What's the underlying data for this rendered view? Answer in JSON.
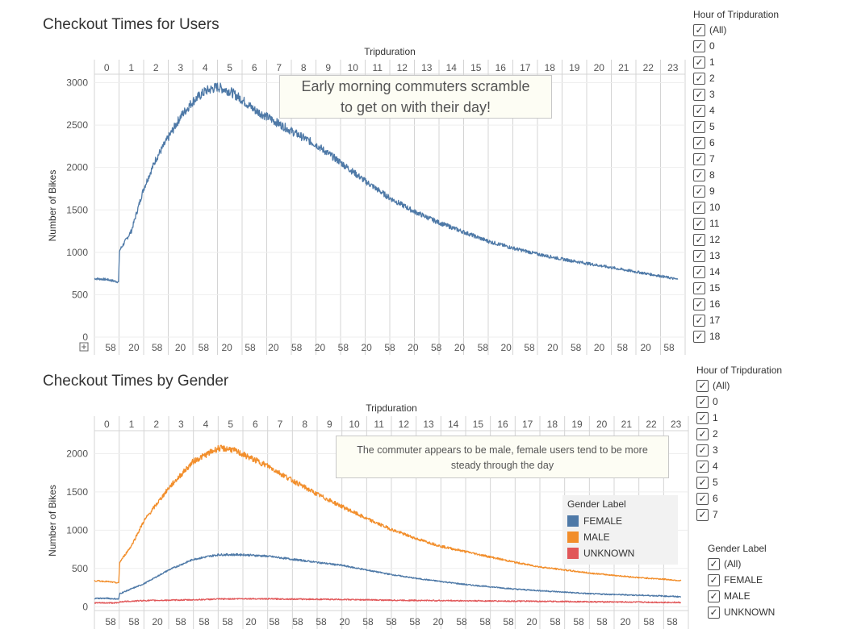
{
  "charts": {
    "top": {
      "title": "Checkout Times for Users"
    },
    "bottom": {
      "title": "Checkout Times by Gender"
    }
  },
  "filters": {
    "hour_top": {
      "title": "Hour of Tripduration",
      "items": [
        "(All)",
        "0",
        "1",
        "2",
        "3",
        "4",
        "5",
        "6",
        "7",
        "8",
        "9",
        "10",
        "11",
        "12",
        "13",
        "14",
        "15",
        "16",
        "17",
        "18"
      ]
    },
    "hour_bottom": {
      "title": "Hour of Tripduration",
      "items": [
        "(All)",
        "0",
        "1",
        "2",
        "3",
        "4",
        "5",
        "6",
        "7"
      ]
    },
    "gender": {
      "title": "Gender Label",
      "items": [
        "(All)",
        "FEMALE",
        "MALE",
        "UNKNOWN"
      ]
    }
  },
  "annotations": {
    "top": [
      "Early morning commuters scramble",
      "to get on with their day!"
    ],
    "bottom": [
      "The commuter appears to be male, female users tend to be more",
      "steady through the day"
    ]
  },
  "legend": {
    "title": "Gender Label",
    "items": [
      {
        "label": "FEMALE",
        "color": "#4e79a7"
      },
      {
        "label": "MALE",
        "color": "#f28e2b"
      },
      {
        "label": "UNKNOWN",
        "color": "#e15759"
      }
    ]
  },
  "chart_data": [
    {
      "type": "line",
      "title": "Checkout Times for Users",
      "x_axis_title": "Tripduration",
      "ylabel": "Number of Bikes",
      "categories": [
        "0",
        "1",
        "2",
        "3",
        "4",
        "5",
        "6",
        "7",
        "8",
        "9",
        "10",
        "11",
        "12",
        "13",
        "14",
        "15",
        "16",
        "17",
        "18",
        "19",
        "20",
        "21",
        "22",
        "23"
      ],
      "bottom_tick_labels": [
        "58",
        "20",
        "58",
        "20",
        "58",
        "20",
        "58",
        "20",
        "58",
        "20",
        "58",
        "20",
        "58",
        "20",
        "58",
        "20",
        "58",
        "20",
        "58",
        "20",
        "58",
        "20",
        "58",
        "20",
        "58"
      ],
      "ylim": [
        0,
        3100
      ],
      "yticks": [
        0,
        500,
        1000,
        1500,
        2000,
        2500,
        3000
      ],
      "grid": true,
      "series": [
        {
          "color": "#4e79a7",
          "x": [
            0,
            0.5,
            0.98,
            1.02,
            1.5,
            2,
            2.5,
            3,
            3.5,
            4,
            4.5,
            5,
            5.5,
            6,
            6.5,
            7,
            8,
            9,
            10,
            11,
            12,
            13,
            14,
            15,
            16,
            17,
            18,
            19,
            20,
            21,
            22,
            23,
            23.7
          ],
          "values": [
            690,
            680,
            650,
            1020,
            1250,
            1750,
            2100,
            2350,
            2600,
            2780,
            2900,
            2950,
            2900,
            2800,
            2680,
            2600,
            2430,
            2270,
            2060,
            1840,
            1640,
            1480,
            1350,
            1240,
            1130,
            1050,
            980,
            920,
            870,
            820,
            770,
            720,
            680
          ]
        }
      ]
    },
    {
      "type": "line",
      "title": "Checkout Times by Gender",
      "x_axis_title": "Tripduration",
      "ylabel": "Number of Bikes",
      "categories": [
        "0",
        "1",
        "2",
        "3",
        "4",
        "5",
        "6",
        "7",
        "8",
        "9",
        "10",
        "11",
        "12",
        "13",
        "14",
        "15",
        "16",
        "17",
        "18",
        "19",
        "20",
        "21",
        "22",
        "23"
      ],
      "bottom_tick_labels": [
        "58",
        "58",
        "20",
        "58",
        "58",
        "58",
        "20",
        "58",
        "58",
        "58",
        "20",
        "58",
        "58",
        "58",
        "20",
        "58",
        "58",
        "58",
        "20",
        "58",
        "58",
        "58",
        "20",
        "58",
        "58"
      ],
      "ylim": [
        -50,
        2300
      ],
      "yticks": [
        0,
        500,
        1000,
        1500,
        2000
      ],
      "grid": true,
      "legend": "right",
      "series": [
        {
          "name": "FEMALE",
          "color": "#4e79a7",
          "x": [
            0,
            0.5,
            0.98,
            1.02,
            2,
            3,
            4,
            5,
            6,
            7,
            8,
            9,
            10,
            11,
            12,
            13,
            14,
            15,
            16,
            17,
            18,
            19,
            20,
            21,
            22,
            23,
            23.7
          ],
          "values": [
            110,
            110,
            100,
            170,
            300,
            480,
            620,
            680,
            680,
            660,
            620,
            580,
            540,
            480,
            420,
            370,
            330,
            290,
            260,
            230,
            210,
            190,
            170,
            160,
            150,
            140,
            130
          ]
        },
        {
          "name": "MALE",
          "color": "#f28e2b",
          "x": [
            0,
            0.5,
            0.98,
            1.02,
            1.5,
            2,
            3,
            4,
            5,
            5.5,
            6,
            7,
            8,
            9,
            10,
            11,
            12,
            13,
            14,
            15,
            16,
            17,
            18,
            19,
            20,
            21,
            22,
            23,
            23.7
          ],
          "values": [
            340,
            330,
            310,
            580,
            800,
            1120,
            1550,
            1900,
            2070,
            2060,
            1990,
            1840,
            1650,
            1470,
            1310,
            1150,
            1010,
            890,
            790,
            720,
            650,
            580,
            520,
            480,
            440,
            410,
            380,
            360,
            340
          ]
        },
        {
          "name": "UNKNOWN",
          "color": "#e15759",
          "x": [
            0,
            0.98,
            1.02,
            2,
            3,
            4,
            5,
            6,
            8,
            10,
            12,
            14,
            16,
            18,
            20,
            22,
            23.7
          ],
          "values": [
            50,
            50,
            65,
            80,
            85,
            90,
            100,
            105,
            100,
            95,
            85,
            80,
            75,
            70,
            65,
            60,
            55
          ]
        }
      ]
    }
  ]
}
